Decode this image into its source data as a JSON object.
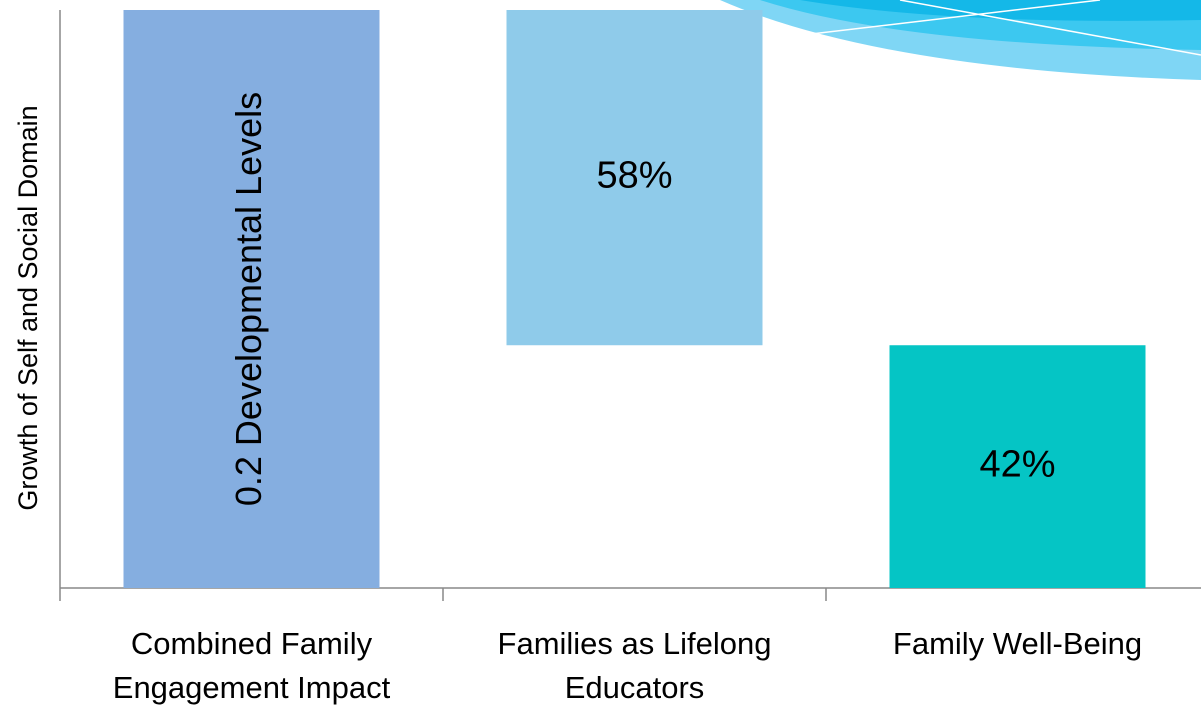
{
  "chart_data": {
    "type": "waterfall",
    "y_label": "Growth of Self and Social Domain",
    "categories": [
      "Combined Family Engagement Impact",
      "Families as Lifelong Educators",
      "Family Well-Being"
    ],
    "values": [
      100,
      58,
      42
    ],
    "value_labels": [
      null,
      "58%",
      "42%"
    ],
    "annotation": "0.2 Developmental Levels",
    "colors": [
      "#85aee0",
      "#8fcbea",
      "#05c5c5"
    ],
    "ylim": [
      0,
      100
    ]
  }
}
